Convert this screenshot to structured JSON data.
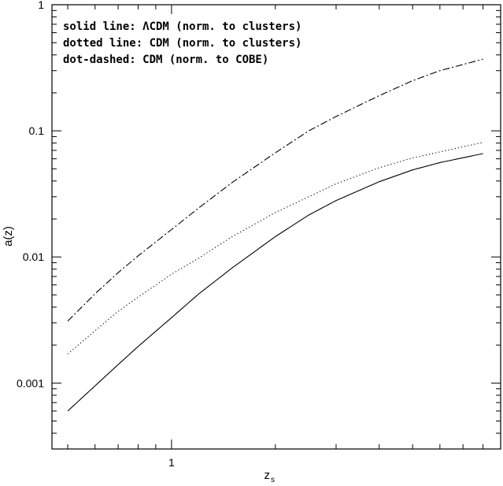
{
  "chart_data": {
    "type": "line",
    "xlabel": "z",
    "xlabel_sub": "s",
    "ylabel": "a(z)",
    "x_scale": "log",
    "y_scale": "log",
    "xlim": [
      0.45,
      9.0
    ],
    "ylim": [
      0.0003,
      1
    ],
    "x_tick_labels": [
      {
        "value": 1,
        "label": "1"
      }
    ],
    "y_tick_labels": [
      {
        "value": 1,
        "label": "1"
      },
      {
        "value": 0.1,
        "label": "0.1"
      },
      {
        "value": 0.01,
        "label": "0.01"
      },
      {
        "value": 0.001,
        "label": "0.001"
      }
    ],
    "legend": [
      "solid line: ΛCDM (norm. to clusters)",
      "dotted line:  CDM  (norm. to clusters)",
      "dot-dashed:  CDM  (norm. to COBE)"
    ],
    "grid": false,
    "series": [
      {
        "style": "solid",
        "x": [
          0.5,
          0.6,
          0.7,
          0.8,
          1.0,
          1.2,
          1.5,
          2.0,
          2.5,
          3.0,
          4.0,
          5.0,
          6.0,
          8.0
        ],
        "y": [
          0.0006,
          0.00095,
          0.0014,
          0.00195,
          0.0033,
          0.0051,
          0.0082,
          0.0145,
          0.0215,
          0.028,
          0.0395,
          0.049,
          0.056,
          0.066
        ]
      },
      {
        "style": "dotted",
        "x": [
          0.5,
          0.6,
          0.7,
          0.8,
          1.0,
          1.2,
          1.5,
          2.0,
          2.5,
          3.0,
          4.0,
          5.0,
          6.0,
          8.0
        ],
        "y": [
          0.0017,
          0.0026,
          0.0037,
          0.0048,
          0.0073,
          0.0098,
          0.0145,
          0.0225,
          0.03,
          0.038,
          0.051,
          0.061,
          0.068,
          0.081
        ]
      },
      {
        "style": "dot-dashed",
        "x": [
          0.5,
          0.6,
          0.7,
          0.8,
          1.0,
          1.2,
          1.5,
          2.0,
          2.5,
          3.0,
          4.0,
          5.0,
          6.0,
          8.0
        ],
        "y": [
          0.0031,
          0.0051,
          0.0075,
          0.0102,
          0.0165,
          0.0245,
          0.039,
          0.067,
          0.1,
          0.13,
          0.19,
          0.25,
          0.3,
          0.37
        ]
      }
    ]
  }
}
